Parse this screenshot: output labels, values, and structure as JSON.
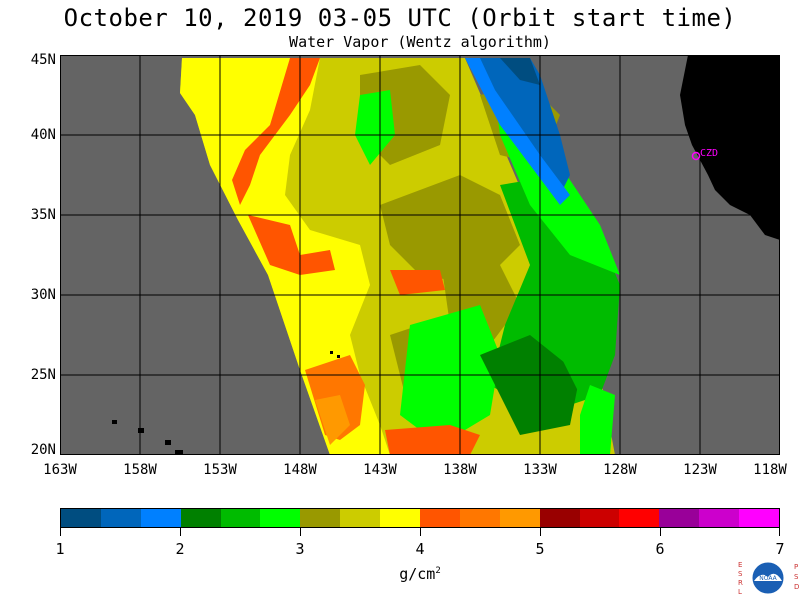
{
  "title": "October 10, 2019  03-05 UTC  (Orbit start time)",
  "subtitle": "Water Vapor (Wentz algorithm)",
  "map": {
    "lon_range": [
      -163,
      -118
    ],
    "lat_range": [
      20,
      45
    ],
    "lat_labels": [
      "45N",
      "40N",
      "35N",
      "30N",
      "25N",
      "20N"
    ],
    "lon_labels": [
      "163W",
      "158W",
      "153W",
      "148W",
      "143W",
      "138W",
      "133W",
      "128W",
      "123W",
      "118W"
    ],
    "station_label": "CZD",
    "colors": {
      "no_data": "#646464",
      "land": "#000000",
      "grid": "#000000",
      "station": "#ff00ff"
    }
  },
  "colorbar": {
    "tick_labels": [
      "1",
      "2",
      "3",
      "4",
      "5",
      "6",
      "7"
    ],
    "unit": "g/cm",
    "unit_exponent": "2",
    "colors": [
      "#004d80",
      "#0066bb",
      "#0080ff",
      "#008000",
      "#00bb00",
      "#00ff00",
      "#999900",
      "#cccc00",
      "#ffff00",
      "#ff5500",
      "#ff7700",
      "#ff9900",
      "#990000",
      "#cc0000",
      "#ff0000",
      "#990099",
      "#cc00cc",
      "#ff00ff"
    ]
  },
  "logo": {
    "left_letters": "ESRL",
    "right_letters": "PSD",
    "text": "NOAA"
  }
}
